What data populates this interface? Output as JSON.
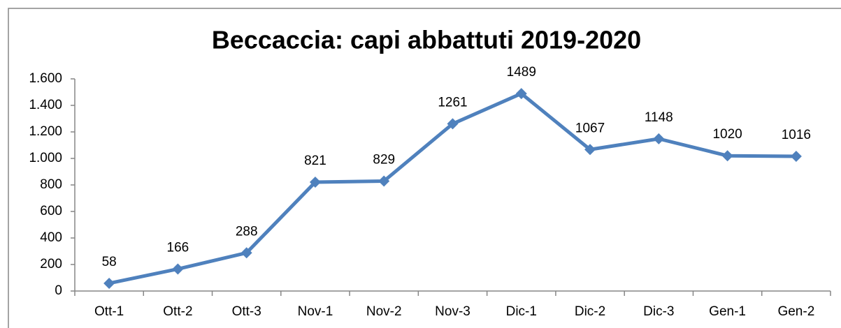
{
  "chart_data": {
    "type": "line",
    "title": "Beccaccia: capi abbattuti 2019-2020",
    "categories": [
      "Ott-1",
      "Ott-2",
      "Ott-3",
      "Nov-1",
      "Nov-2",
      "Nov-3",
      "Dic-1",
      "Dic-2",
      "Dic-3",
      "Gen-1",
      "Gen-2"
    ],
    "values": [
      58,
      166,
      288,
      821,
      829,
      1261,
      1489,
      1067,
      1148,
      1020,
      1016
    ],
    "color": "#4f81bd",
    "ylim": [
      0,
      1600
    ],
    "yticks": [
      0,
      200,
      400,
      600,
      800,
      {
        "value": 1000,
        "label": "1.000"
      },
      {
        "value": 1200,
        "label": "1.200"
      },
      {
        "value": 1400,
        "label": "1.400"
      },
      {
        "value": 1600,
        "label": "1.600"
      }
    ],
    "grid": false
  }
}
